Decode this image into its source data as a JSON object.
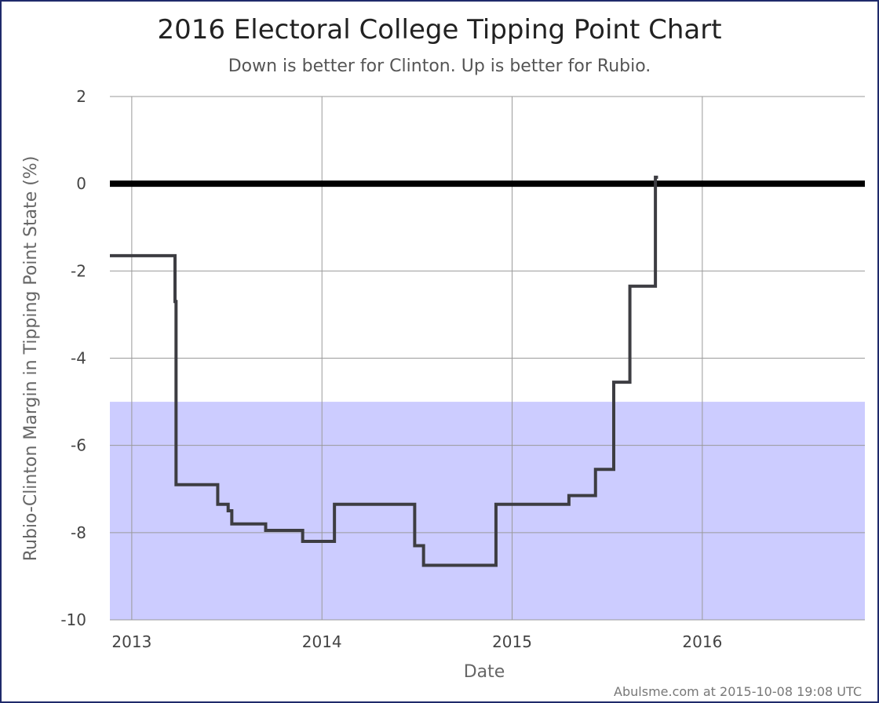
{
  "chart_data": {
    "type": "line",
    "title": "2016 Electoral College Tipping Point Chart",
    "subtitle": "Down is better for Clinton. Up is better for Rubio.",
    "xlabel": "Date",
    "ylabel": "Rubio-Clinton Margin in Tipping Point State (%)",
    "credit": "Abulsme.com at 2015-10-08 19:08 UTC",
    "xlim": [
      "2012-11-20",
      "2016-11-08"
    ],
    "ylim": [
      -10,
      2
    ],
    "y_ticks": [
      2,
      0,
      -2,
      -4,
      -6,
      -8,
      -10
    ],
    "x_ticks": [
      {
        "date": "2013-01-01",
        "label": "2013"
      },
      {
        "date": "2014-01-01",
        "label": "2014"
      },
      {
        "date": "2015-01-01",
        "label": "2015"
      },
      {
        "date": "2016-01-01",
        "label": "2016"
      }
    ],
    "grid": true,
    "reference_line_y": 0,
    "shaded_band": {
      "from": -10,
      "to": -5,
      "color": "#ccccff"
    },
    "line_color": "#3d3d42",
    "series": [
      {
        "step": true,
        "points": [
          {
            "x": "2012-11-20",
            "y": -1.65
          },
          {
            "x": "2013-03-25",
            "y": -2.7
          },
          {
            "x": "2013-03-27",
            "y": -6.9
          },
          {
            "x": "2013-06-15",
            "y": -7.35
          },
          {
            "x": "2013-07-05",
            "y": -7.5
          },
          {
            "x": "2013-07-12",
            "y": -7.8
          },
          {
            "x": "2013-09-15",
            "y": -7.95
          },
          {
            "x": "2013-11-25",
            "y": -8.2
          },
          {
            "x": "2014-01-25",
            "y": -7.35
          },
          {
            "x": "2014-06-28",
            "y": -8.3
          },
          {
            "x": "2014-07-15",
            "y": -8.75
          },
          {
            "x": "2014-12-01",
            "y": -7.35
          },
          {
            "x": "2015-04-20",
            "y": -7.15
          },
          {
            "x": "2015-06-10",
            "y": -6.55
          },
          {
            "x": "2015-07-15",
            "y": -4.55
          },
          {
            "x": "2015-08-15",
            "y": -2.35
          },
          {
            "x": "2015-10-03",
            "y": 0.15
          },
          {
            "x": "2015-10-08",
            "y": 0.15
          }
        ]
      }
    ]
  }
}
